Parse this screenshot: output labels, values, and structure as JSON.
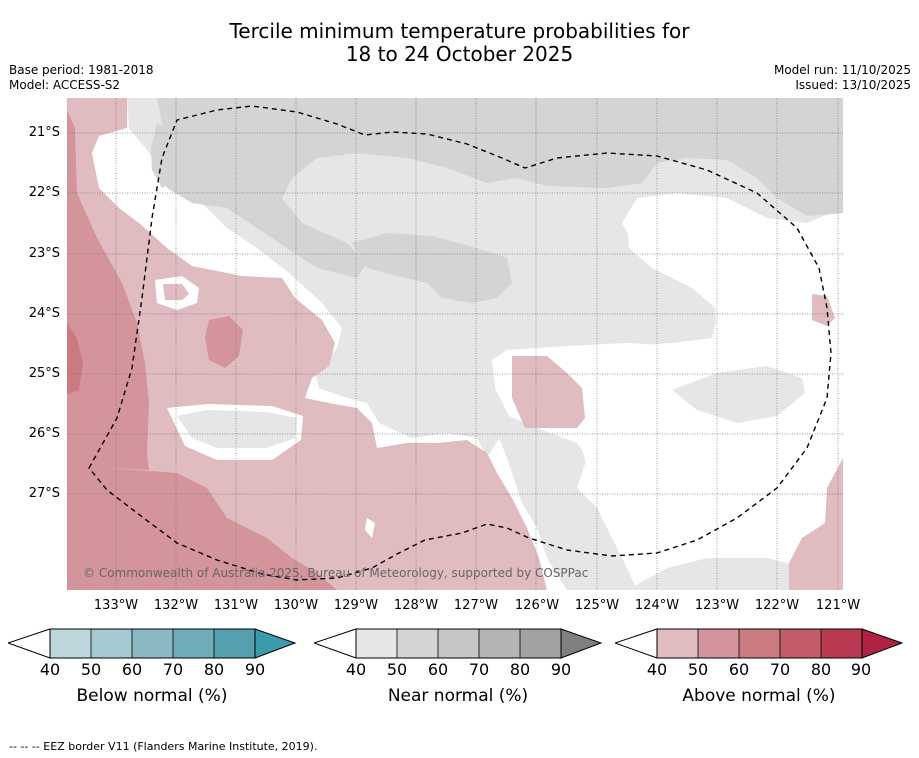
{
  "title": {
    "line1": "Tercile minimum temperature probabilities for",
    "line2": "18 to 24 October 2025"
  },
  "meta": {
    "base_period": "Base period: 1981-2018",
    "model": "Model: ACCESS-S2",
    "model_run": "Model run: 11/10/2025",
    "issued": "Issued: 13/10/2025"
  },
  "map": {
    "copyright": "© Commonwealth of Australia 2025, Bureau of Meteorology, supported by COSPPac",
    "lat_labels": [
      "21°S",
      "22°S",
      "23°S",
      "24°S",
      "25°S",
      "26°S",
      "27°S"
    ],
    "lon_labels": [
      "133°W",
      "132°W",
      "131°W",
      "130°W",
      "129°W",
      "128°W",
      "127°W",
      "126°W",
      "125°W",
      "124°W",
      "123°W",
      "122°W",
      "121°W"
    ],
    "colors": {
      "near_40": "#e6e6e6",
      "near_50": "#d4d4d4",
      "above_40": "#e0bcc1",
      "above_50": "#d4949b",
      "above_60": "#cc7a82",
      "white": "#ffffff"
    }
  },
  "legends": [
    {
      "title": "Below normal (%)",
      "ticks": [
        "40",
        "50",
        "60",
        "70",
        "80",
        "90"
      ],
      "colors": [
        "#bcd6dc",
        "#a5c9d0",
        "#8ab9c4",
        "#6fabb8",
        "#55a0ae",
        "#3b9aab"
      ]
    },
    {
      "title": "Near normal (%)",
      "ticks": [
        "40",
        "50",
        "60",
        "70",
        "80",
        "90"
      ],
      "colors": [
        "#e6e6e6",
        "#d4d4d4",
        "#c6c6c6",
        "#b4b4b4",
        "#a2a2a2",
        "#808080"
      ]
    },
    {
      "title": "Above normal (%)",
      "ticks": [
        "40",
        "50",
        "60",
        "70",
        "80",
        "90"
      ],
      "colors": [
        "#e0bcc1",
        "#d4949b",
        "#cc7a82",
        "#c25c68",
        "#b83a50",
        "#b02242"
      ]
    }
  ],
  "footer": "--  --  -- EEZ border V11 (Flanders Marine Institute, 2019)."
}
